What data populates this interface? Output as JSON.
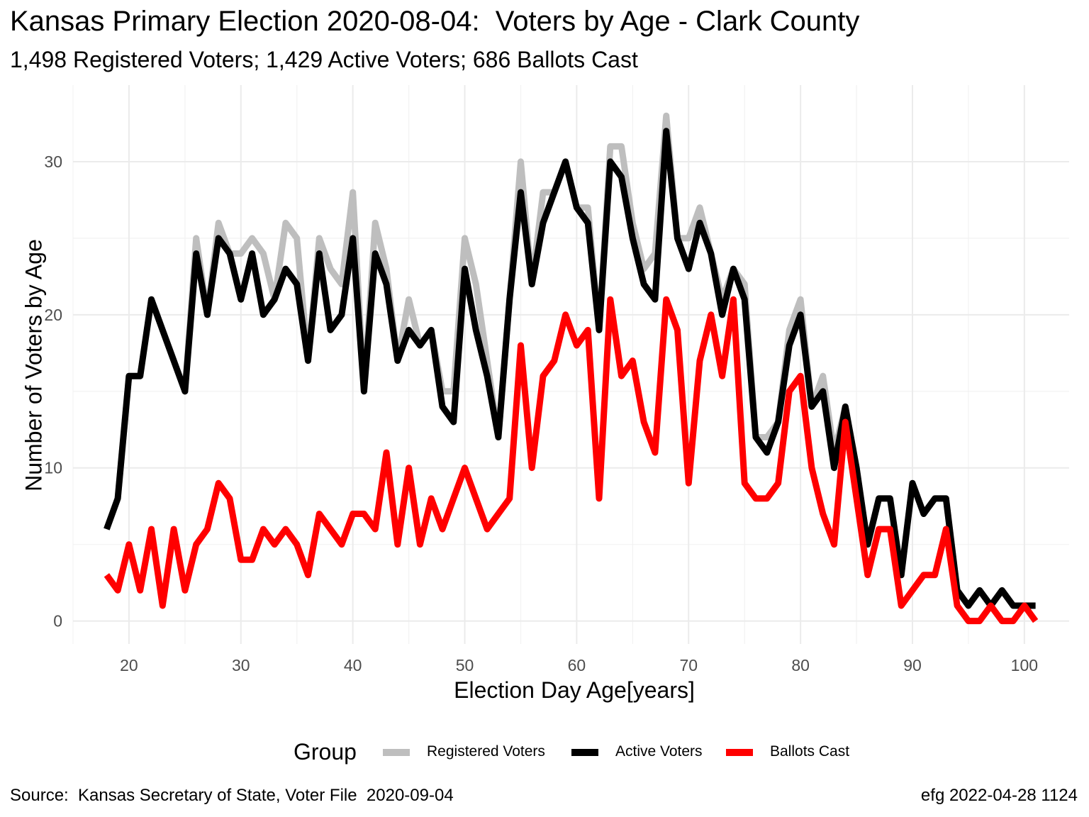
{
  "title": "Kansas Primary Election 2020-08-04:  Voters by Age - Clark County",
  "subtitle": "1,498 Registered Voters; 1,429 Active Voters; 686 Ballots Cast",
  "caption_left": "Source:  Kansas Secretary of State, Voter File  2020-09-04",
  "caption_right": "efg 2022-04-28 1124",
  "legend": {
    "title": "Group",
    "items": [
      {
        "label": "Registered Voters",
        "color": "#bebebe"
      },
      {
        "label": "Active Voters",
        "color": "#000000"
      },
      {
        "label": "Ballots Cast",
        "color": "#ff0000"
      }
    ]
  },
  "chart_data": {
    "type": "line",
    "title": "Kansas Primary Election 2020-08-04:  Voters by Age - Clark County",
    "subtitle": "1,498 Registered Voters; 1,429 Active Voters; 686 Ballots Cast",
    "xlabel": "Election Day Age[years]",
    "ylabel": "Number of Voters by Age",
    "xlim": [
      15,
      104
    ],
    "ylim": [
      -1.5,
      35
    ],
    "x_ticks": [
      20,
      30,
      40,
      50,
      60,
      70,
      80,
      90,
      100
    ],
    "y_ticks": [
      0,
      10,
      20,
      30
    ],
    "grid": true,
    "legend_position": "bottom",
    "x": [
      18,
      19,
      20,
      21,
      22,
      23,
      24,
      25,
      26,
      27,
      28,
      29,
      30,
      31,
      32,
      33,
      34,
      35,
      36,
      37,
      38,
      39,
      40,
      41,
      42,
      43,
      44,
      45,
      46,
      47,
      48,
      49,
      50,
      51,
      52,
      53,
      54,
      55,
      56,
      57,
      58,
      59,
      60,
      61,
      62,
      63,
      64,
      65,
      66,
      67,
      68,
      69,
      70,
      71,
      72,
      73,
      74,
      75,
      76,
      77,
      78,
      79,
      80,
      81,
      82,
      83,
      84,
      85,
      86,
      87,
      88,
      89,
      90,
      91,
      92,
      93,
      94,
      95,
      96,
      97,
      98,
      99,
      100,
      101
    ],
    "series": [
      {
        "name": "Registered Voters",
        "color": "#bebebe",
        "values": [
          6,
          8,
          16,
          16,
          21,
          19,
          17,
          15,
          25,
          20,
          26,
          24,
          24,
          25,
          24,
          21,
          26,
          25,
          17,
          25,
          23,
          22,
          28,
          15,
          26,
          23,
          17,
          21,
          18,
          19,
          15,
          15,
          25,
          22,
          17,
          12,
          21,
          30,
          22,
          28,
          28,
          30,
          27,
          27,
          19,
          31,
          31,
          26,
          23,
          24,
          33,
          25,
          25,
          27,
          24,
          21,
          23,
          22,
          12,
          12,
          13,
          19,
          21,
          14,
          16,
          11,
          14,
          10,
          5,
          8,
          8,
          3,
          9,
          7,
          8,
          8,
          2,
          1,
          2,
          1,
          2,
          1,
          1,
          1
        ]
      },
      {
        "name": "Active Voters",
        "color": "#000000",
        "values": [
          6,
          8,
          16,
          16,
          21,
          19,
          17,
          15,
          24,
          20,
          25,
          24,
          21,
          24,
          20,
          21,
          23,
          22,
          17,
          24,
          19,
          20,
          25,
          15,
          24,
          22,
          17,
          19,
          18,
          19,
          14,
          13,
          23,
          19,
          16,
          12,
          21,
          28,
          22,
          26,
          28,
          30,
          27,
          26,
          19,
          30,
          29,
          25,
          22,
          21,
          32,
          25,
          23,
          26,
          24,
          20,
          23,
          21,
          12,
          11,
          13,
          18,
          20,
          14,
          15,
          10,
          14,
          10,
          5,
          8,
          8,
          3,
          9,
          7,
          8,
          8,
          2,
          1,
          2,
          1,
          2,
          1,
          1,
          1
        ]
      },
      {
        "name": "Ballots Cast",
        "color": "#ff0000",
        "values": [
          3,
          2,
          5,
          2,
          6,
          1,
          6,
          2,
          5,
          6,
          9,
          8,
          4,
          4,
          6,
          5,
          6,
          5,
          3,
          7,
          6,
          5,
          7,
          7,
          6,
          11,
          5,
          10,
          5,
          8,
          6,
          8,
          10,
          8,
          6,
          7,
          8,
          18,
          10,
          16,
          17,
          20,
          18,
          19,
          8,
          21,
          16,
          17,
          13,
          11,
          21,
          19,
          9,
          17,
          20,
          16,
          21,
          9,
          8,
          8,
          9,
          15,
          16,
          10,
          7,
          5,
          13,
          8,
          3,
          6,
          6,
          1,
          2,
          3,
          3,
          6,
          1,
          0,
          0,
          1,
          0,
          0,
          1,
          0
        ]
      }
    ]
  }
}
